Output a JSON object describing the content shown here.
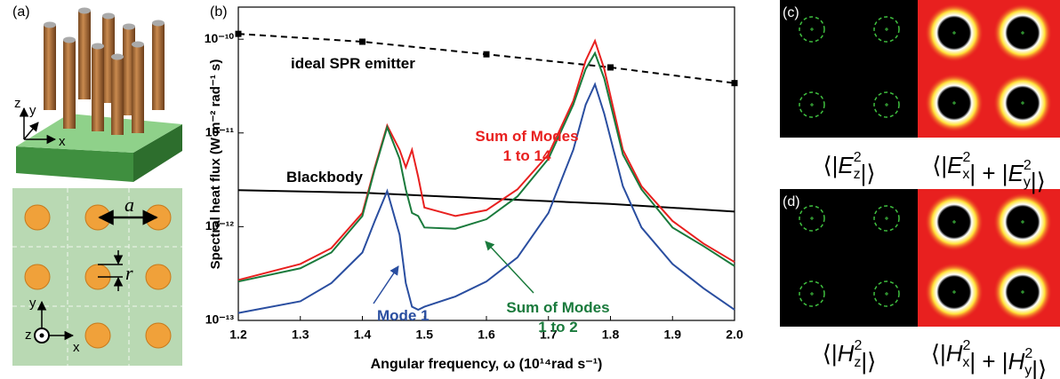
{
  "chart_data": {
    "type": "line",
    "xlabel": "Angular frequency, ω (10¹⁴rad s⁻¹)",
    "ylabel": "Spectral heat flux (W m⁻² rad⁻¹ s)",
    "xlim": [
      1.2,
      2.0
    ],
    "xticks": [
      1.2,
      1.3,
      1.4,
      1.5,
      1.6,
      1.7,
      1.8,
      1.9,
      {
        "value": 2.0,
        "label": "2.0"
      }
    ],
    "ylim": [
      1e-13,
      2.2e-10
    ],
    "yscale": "log",
    "yticks": [
      {
        "value": 1e-13,
        "label": "10⁻¹³"
      },
      {
        "value": 1e-12,
        "label": "10⁻¹²"
      },
      {
        "value": 1e-11,
        "label": "10⁻¹¹"
      },
      {
        "value": 1e-10,
        "label": "10⁻¹⁰"
      }
    ],
    "series": [
      {
        "name": "ideal SPR emitter",
        "color": "#000000",
        "linestyle": "dashed",
        "marker": "square",
        "x": [
          1.2,
          1.4,
          1.6,
          1.8,
          2.0
        ],
        "values": [
          1.14e-10,
          9.4e-11,
          6.9e-11,
          5e-11,
          3.4e-11
        ]
      },
      {
        "name": "Blackbody",
        "color": "#000000",
        "linestyle": "solid",
        "x": [
          1.2,
          1.4,
          1.6,
          1.8,
          2.0
        ],
        "values": [
          2.45e-12,
          2.3e-12,
          2e-12,
          1.75e-12,
          1.45e-12
        ]
      },
      {
        "name": "Sum of Modes 1 to 14",
        "color": "#e8201f",
        "linestyle": "solid",
        "x": [
          1.2,
          1.3,
          1.35,
          1.4,
          1.42,
          1.44,
          1.46,
          1.47,
          1.48,
          1.49,
          1.5,
          1.55,
          1.6,
          1.65,
          1.7,
          1.74,
          1.76,
          1.775,
          1.79,
          1.82,
          1.85,
          1.9,
          1.95,
          2.0
        ],
        "values": [
          2.7e-13,
          4e-13,
          5.9e-13,
          1.4e-12,
          4.3e-12,
          1.2e-11,
          6.6e-12,
          4.3e-12,
          6.6e-12,
          3.4e-12,
          1.6e-12,
          1.3e-12,
          1.5e-12,
          2.5e-12,
          5.9e-12,
          2.2e-11,
          5.9e-11,
          9.6e-11,
          4.8e-11,
          6.6e-12,
          2.7e-12,
          1.15e-12,
          6.6e-13,
          4.2e-13
        ]
      },
      {
        "name": "Sum of Modes 1 to 2",
        "color": "#1a7a3c",
        "linestyle": "solid",
        "x": [
          1.2,
          1.3,
          1.35,
          1.4,
          1.42,
          1.44,
          1.46,
          1.47,
          1.48,
          1.49,
          1.5,
          1.55,
          1.6,
          1.65,
          1.7,
          1.74,
          1.76,
          1.775,
          1.79,
          1.82,
          1.85,
          1.9,
          1.95,
          2.0
        ],
        "values": [
          2.6e-13,
          3.6e-13,
          5.3e-13,
          1.3e-12,
          4.1e-12,
          1.15e-11,
          5.3e-12,
          2.5e-12,
          1.4e-12,
          1.3e-12,
          9.8e-13,
          9.5e-13,
          1.2e-12,
          2.1e-12,
          5.3e-12,
          2e-11,
          4.8e-11,
          7.1e-11,
          3.8e-11,
          5.9e-12,
          2.5e-12,
          9.8e-13,
          6.2e-13,
          3.8e-13
        ]
      },
      {
        "name": "Mode 1",
        "color": "#2a4ea0",
        "linestyle": "solid",
        "x": [
          1.2,
          1.3,
          1.35,
          1.4,
          1.42,
          1.44,
          1.46,
          1.47,
          1.48,
          1.49,
          1.5,
          1.55,
          1.6,
          1.65,
          1.7,
          1.74,
          1.76,
          1.775,
          1.79,
          1.82,
          1.85,
          1.9,
          1.95,
          2.0
        ],
        "values": [
          1.2e-13,
          1.6e-13,
          2.5e-13,
          5.3e-13,
          1.15e-12,
          2.4e-12,
          8.2e-13,
          2.5e-13,
          1.4e-13,
          1.3e-13,
          1.4e-13,
          1.8e-13,
          2.6e-13,
          4.7e-13,
          1.4e-12,
          6.6e-12,
          2e-11,
          3.3e-11,
          1.6e-11,
          2.7e-12,
          9.8e-13,
          4e-13,
          2.2e-13,
          1.3e-13
        ]
      }
    ]
  },
  "panels": {
    "a": {
      "label": "(a)",
      "axes_3d": [
        "z",
        "y",
        "x"
      ],
      "lattice": {
        "period": "a",
        "radius": "r",
        "axes": [
          "y",
          "z",
          "x"
        ]
      }
    },
    "b": {
      "label": "(b)"
    },
    "c": {
      "label": "(c)",
      "captions": [
        {
          "open": "⟨|",
          "terms": [
            {
              "base": "E",
              "sub": "z",
              "sup": "2"
            }
          ],
          "close": "|⟩"
        },
        {
          "open": "⟨|",
          "terms": [
            {
              "base": "E",
              "sub": "x",
              "sup": "2"
            },
            {
              "base": "E",
              "sub": "y",
              "sup": "2"
            }
          ],
          "joiner": "| + |",
          "close": "|⟩"
        }
      ]
    },
    "d": {
      "label": "(d)",
      "captions": [
        {
          "open": "⟨|",
          "terms": [
            {
              "base": "H",
              "sub": "z",
              "sup": "2"
            }
          ],
          "close": "|⟩"
        },
        {
          "open": "⟨|",
          "terms": [
            {
              "base": "H",
              "sub": "x",
              "sup": "2"
            },
            {
              "base": "H",
              "sub": "y",
              "sup": "2"
            }
          ],
          "joiner": "| + |",
          "close": "|⟩"
        }
      ]
    }
  }
}
